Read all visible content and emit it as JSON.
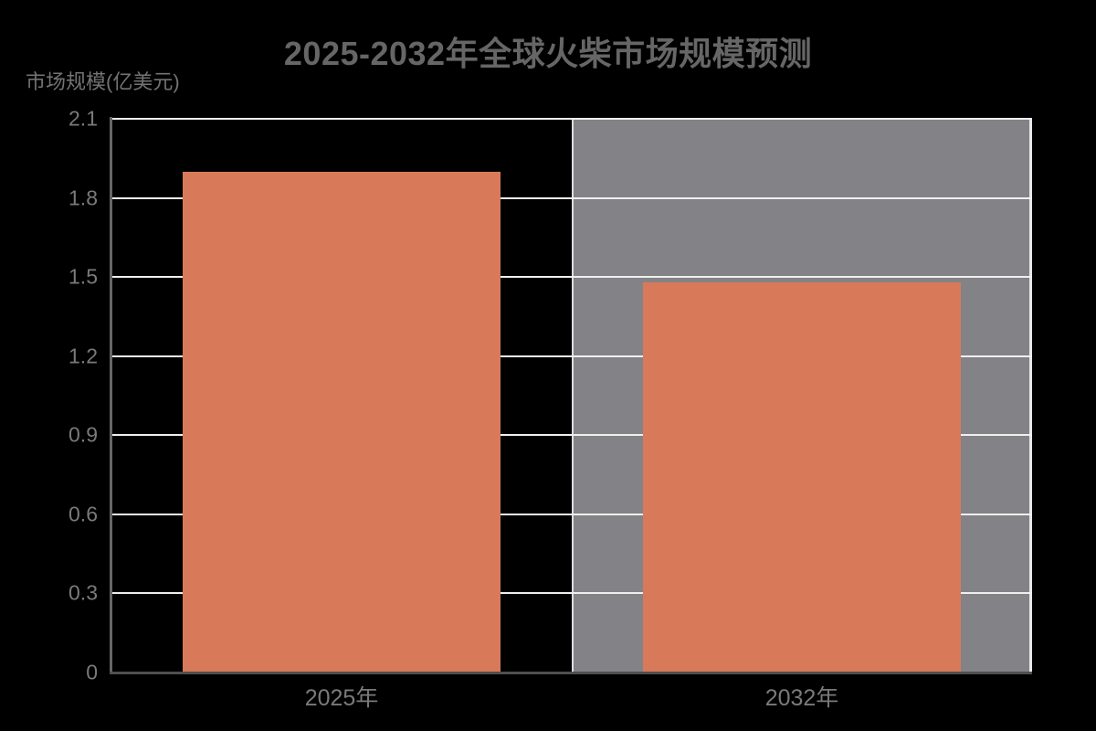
{
  "chart_data": {
    "type": "bar",
    "title": "2025-2032年全球火柴市场规模预测",
    "ylabel": "市场规模(亿美元)",
    "xlabel": "",
    "categories": [
      "2025年",
      "2032年"
    ],
    "values": [
      1.9,
      1.48
    ],
    "ylim": [
      0,
      2.1
    ],
    "yticks": [
      0,
      0.3,
      0.6,
      0.9,
      1.2,
      1.5,
      1.8,
      2.1
    ],
    "grid": "horizontal gridlines on, light color over dark background",
    "legend": "none",
    "annotations": {
      "forecast_band": {
        "description": "gray highlighted region behind the 2032 forecast bar, right half of plot",
        "x_start_fraction": 0.5,
        "x_end_fraction": 1.0
      }
    },
    "layout": {
      "bar_center_fractions": [
        0.25,
        0.75
      ],
      "bar_width_fraction": 0.345
    },
    "colors": {
      "background": "#000000",
      "bar_fill": "#D8795A",
      "forecast_band_fill": "#838287",
      "forecast_band_edge": "#E9E7EA",
      "gridline": "#F1EEEE",
      "left_spine": "#666666",
      "bottom_spine": "#4F4F4F",
      "title_text": "#666666",
      "axis_label_text": "#737373",
      "tick_text": "#7A7A7A"
    }
  }
}
